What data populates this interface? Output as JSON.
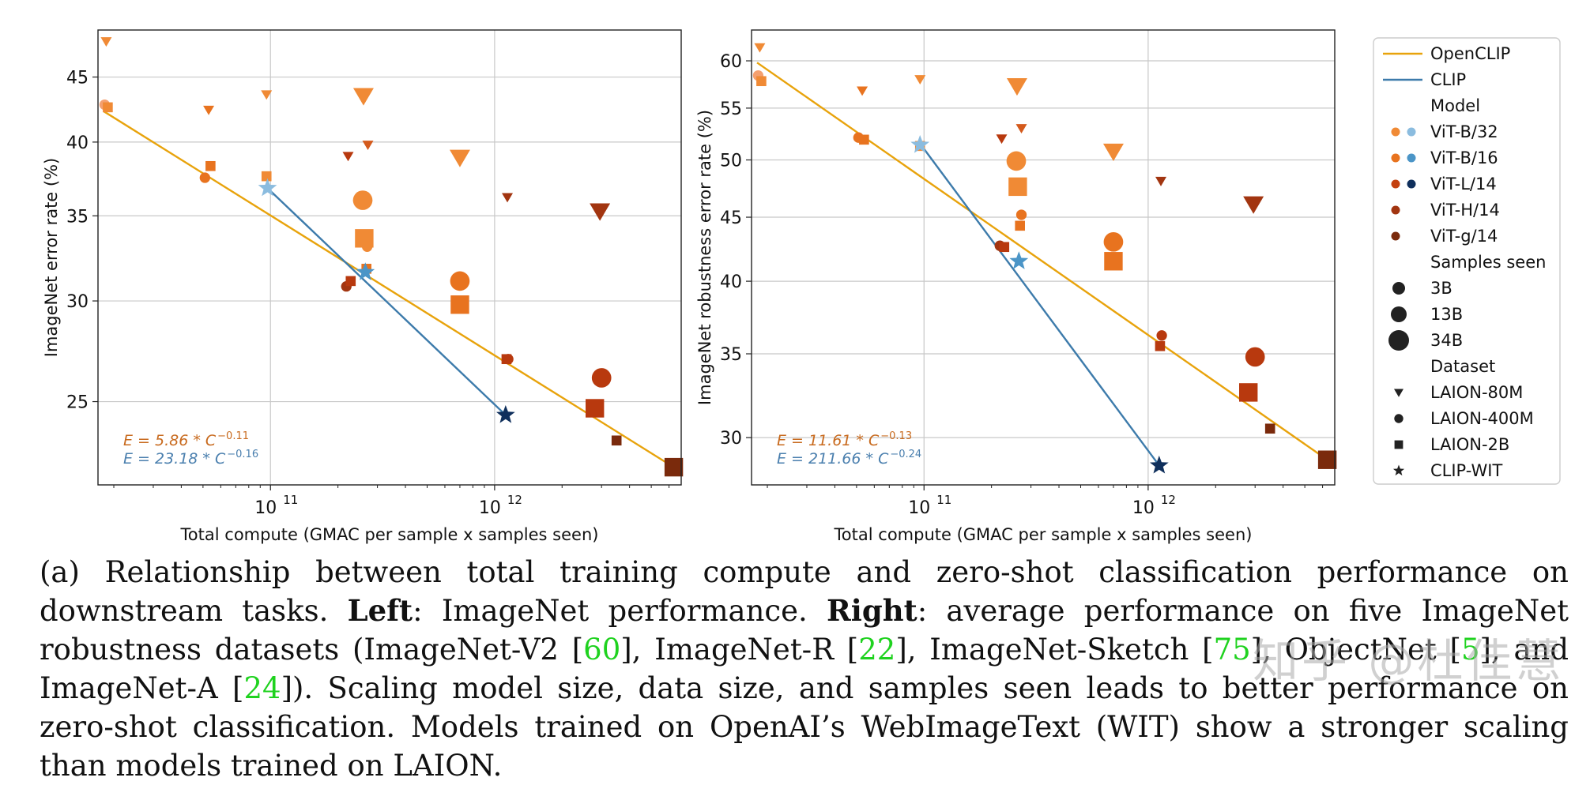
{
  "chart_data": [
    {
      "type": "scatter",
      "panel": "left",
      "xlabel": "Total compute (GMAC per sample x samples seen)",
      "ylabel": "ImageNet error rate (%)",
      "xscale": "log",
      "yscale": "log",
      "xlim": [
        17000000000,
        6800000000000
      ],
      "ylim": [
        21.5,
        49
      ],
      "xticks": [
        {
          "value": 100000000000,
          "label": "10",
          "exp": "11"
        },
        {
          "value": 1000000000000,
          "label": "10",
          "exp": "12"
        }
      ],
      "yticks": [
        25,
        30,
        35,
        40,
        45
      ],
      "fit_lines": [
        {
          "name": "OpenCLIP",
          "color": "#e8a30c",
          "x": [
            18000000000,
            6300000000000
          ],
          "y": [
            42.3,
            22.2
          ]
        },
        {
          "name": "CLIP",
          "color": "#3d7bab",
          "x": [
            97000000000,
            1120000000000
          ],
          "y": [
            36.8,
            24.4
          ]
        }
      ],
      "equations": [
        {
          "base": "E = 5.86 * C",
          "exp": "−0.11",
          "color": "#c86a1e"
        },
        {
          "base": "E = 23.18 * C",
          "exp": "−0.16",
          "color": "#4a7fae"
        }
      ],
      "points": [
        {
          "x": 18500000000,
          "y": 48.0,
          "marker": "triangle",
          "size": 1,
          "color": "#f08a35"
        },
        {
          "x": 18200000000,
          "y": 42.8,
          "marker": "circle",
          "size": 1,
          "color": "#f4a070"
        },
        {
          "x": 18800000000,
          "y": 42.6,
          "marker": "square",
          "size": 1,
          "color": "#f08a35"
        },
        {
          "x": 53000000000,
          "y": 42.4,
          "marker": "triangle",
          "size": 1,
          "color": "#e8731f"
        },
        {
          "x": 51000000000,
          "y": 37.5,
          "marker": "circle",
          "size": 1,
          "color": "#e8731f"
        },
        {
          "x": 54000000000,
          "y": 38.3,
          "marker": "square",
          "size": 1,
          "color": "#e8731f"
        },
        {
          "x": 96000000000,
          "y": 43.6,
          "marker": "triangle",
          "size": 1,
          "color": "#f08a35"
        },
        {
          "x": 96000000000,
          "y": 37.6,
          "marker": "square",
          "size": 1,
          "color": "#f08a35"
        },
        {
          "x": 97000000000,
          "y": 36.8,
          "marker": "star",
          "size": 2,
          "color": "#8bbcdf"
        },
        {
          "x": 260000000000,
          "y": 43.5,
          "marker": "triangle",
          "size": 3,
          "color": "#f08a35"
        },
        {
          "x": 258000000000,
          "y": 36.0,
          "marker": "circle",
          "size": 3,
          "color": "#f08a35"
        },
        {
          "x": 262000000000,
          "y": 33.6,
          "marker": "square",
          "size": 3,
          "color": "#f08a35"
        },
        {
          "x": 270000000000,
          "y": 33.1,
          "marker": "circle",
          "size": 1,
          "color": "#f08a35"
        },
        {
          "x": 268000000000,
          "y": 31.8,
          "marker": "square",
          "size": 1,
          "color": "#e8731f"
        },
        {
          "x": 265000000000,
          "y": 31.6,
          "marker": "star",
          "size": 2,
          "color": "#4b95c7"
        },
        {
          "x": 272000000000,
          "y": 39.8,
          "marker": "triangle",
          "size": 1,
          "color": "#d45a1c"
        },
        {
          "x": 222000000000,
          "y": 39.0,
          "marker": "triangle",
          "size": 1,
          "color": "#b8390e"
        },
        {
          "x": 218000000000,
          "y": 30.8,
          "marker": "circle",
          "size": 1,
          "color": "#a23510"
        },
        {
          "x": 228000000000,
          "y": 31.1,
          "marker": "square",
          "size": 1,
          "color": "#b8390e"
        },
        {
          "x": 700000000000,
          "y": 38.9,
          "marker": "triangle",
          "size": 3,
          "color": "#f08a35"
        },
        {
          "x": 700000000000,
          "y": 31.1,
          "marker": "circle",
          "size": 3,
          "color": "#e8731f"
        },
        {
          "x": 700000000000,
          "y": 29.8,
          "marker": "square",
          "size": 3,
          "color": "#e8731f"
        },
        {
          "x": 1140000000000,
          "y": 36.2,
          "marker": "triangle",
          "size": 1,
          "color": "#a23510"
        },
        {
          "x": 1150000000000,
          "y": 27.0,
          "marker": "circle",
          "size": 1,
          "color": "#b8390e"
        },
        {
          "x": 1130000000000,
          "y": 27.0,
          "marker": "square",
          "size": 1,
          "color": "#b8390e"
        },
        {
          "x": 1120000000000,
          "y": 24.4,
          "marker": "star",
          "size": 2,
          "color": "#0f2f5c"
        },
        {
          "x": 2950000000000,
          "y": 35.3,
          "marker": "triangle",
          "size": 3,
          "color": "#a23510"
        },
        {
          "x": 3000000000000,
          "y": 26.1,
          "marker": "circle",
          "size": 3,
          "color": "#b8390e"
        },
        {
          "x": 2800000000000,
          "y": 24.7,
          "marker": "square",
          "size": 3,
          "color": "#b8390e"
        },
        {
          "x": 3500000000000,
          "y": 23.3,
          "marker": "square",
          "size": 1,
          "color": "#7a2a0c"
        },
        {
          "x": 6300000000000,
          "y": 22.2,
          "marker": "square",
          "size": 3,
          "color": "#7a2a0c"
        }
      ]
    },
    {
      "type": "scatter",
      "panel": "right",
      "xlabel": "Total compute (GMAC per sample x samples seen)",
      "ylabel": "ImageNet robustness error rate (%)",
      "xscale": "log",
      "yscale": "log",
      "xlim": [
        17000000000,
        6800000000000
      ],
      "ylim": [
        27.5,
        63.5
      ],
      "xticks": [
        {
          "value": 100000000000,
          "label": "10",
          "exp": "11"
        },
        {
          "value": 1000000000000,
          "label": "10",
          "exp": "12"
        }
      ],
      "yticks": [
        30,
        35,
        40,
        45,
        50,
        55,
        60
      ],
      "fit_lines": [
        {
          "name": "OpenCLIP",
          "color": "#e8a30c",
          "x": [
            18000000000,
            6300000000000
          ],
          "y": [
            59.8,
            28.8
          ]
        },
        {
          "name": "CLIP",
          "color": "#3d7bab",
          "x": [
            97000000000,
            1120000000000
          ],
          "y": [
            51.4,
            28.5
          ]
        }
      ],
      "equations": [
        {
          "base": "E = 11.61 * C",
          "exp": "−0.13",
          "color": "#c86a1e"
        },
        {
          "base": "E = 211.66 * C",
          "exp": "−0.24",
          "color": "#4a7fae"
        }
      ],
      "points": [
        {
          "x": 18500000000,
          "y": 61.5,
          "marker": "triangle",
          "size": 1,
          "color": "#f08a35"
        },
        {
          "x": 18200000000,
          "y": 58.4,
          "marker": "circle",
          "size": 1,
          "color": "#f4a070"
        },
        {
          "x": 18800000000,
          "y": 57.8,
          "marker": "square",
          "size": 1,
          "color": "#f08a35"
        },
        {
          "x": 53000000000,
          "y": 56.8,
          "marker": "triangle",
          "size": 1,
          "color": "#e8731f"
        },
        {
          "x": 51000000000,
          "y": 52.1,
          "marker": "circle",
          "size": 1,
          "color": "#e8731f"
        },
        {
          "x": 54000000000,
          "y": 51.9,
          "marker": "square",
          "size": 1,
          "color": "#e8731f"
        },
        {
          "x": 96000000000,
          "y": 58.0,
          "marker": "triangle",
          "size": 1,
          "color": "#f08a35"
        },
        {
          "x": 96000000000,
          "y": 51.3,
          "marker": "square",
          "size": 1,
          "color": "#f08a35"
        },
        {
          "x": 96000000000,
          "y": 51.4,
          "marker": "star",
          "size": 2,
          "color": "#8bbcdf"
        },
        {
          "x": 260000000000,
          "y": 57.3,
          "marker": "triangle",
          "size": 3,
          "color": "#f08a35"
        },
        {
          "x": 258000000000,
          "y": 49.9,
          "marker": "circle",
          "size": 3,
          "color": "#f08a35"
        },
        {
          "x": 262000000000,
          "y": 47.6,
          "marker": "square",
          "size": 3,
          "color": "#f08a35"
        },
        {
          "x": 272000000000,
          "y": 45.2,
          "marker": "circle",
          "size": 1,
          "color": "#e8731f"
        },
        {
          "x": 268000000000,
          "y": 44.3,
          "marker": "square",
          "size": 1,
          "color": "#e8731f"
        },
        {
          "x": 265000000000,
          "y": 41.5,
          "marker": "star",
          "size": 2,
          "color": "#4b95c7"
        },
        {
          "x": 272000000000,
          "y": 53.0,
          "marker": "triangle",
          "size": 1,
          "color": "#d45a1c"
        },
        {
          "x": 222000000000,
          "y": 52.0,
          "marker": "triangle",
          "size": 1,
          "color": "#b8390e"
        },
        {
          "x": 218000000000,
          "y": 42.7,
          "marker": "circle",
          "size": 1,
          "color": "#a23510"
        },
        {
          "x": 228000000000,
          "y": 42.6,
          "marker": "square",
          "size": 1,
          "color": "#b8390e"
        },
        {
          "x": 700000000000,
          "y": 50.8,
          "marker": "triangle",
          "size": 3,
          "color": "#f08a35"
        },
        {
          "x": 700000000000,
          "y": 43.0,
          "marker": "circle",
          "size": 3,
          "color": "#e8731f"
        },
        {
          "x": 700000000000,
          "y": 41.5,
          "marker": "square",
          "size": 3,
          "color": "#e8731f"
        },
        {
          "x": 1140000000000,
          "y": 48.1,
          "marker": "triangle",
          "size": 1,
          "color": "#a23510"
        },
        {
          "x": 1150000000000,
          "y": 36.2,
          "marker": "circle",
          "size": 1,
          "color": "#b8390e"
        },
        {
          "x": 1130000000000,
          "y": 35.5,
          "marker": "square",
          "size": 1,
          "color": "#b8390e"
        },
        {
          "x": 1120000000000,
          "y": 28.5,
          "marker": "star",
          "size": 2,
          "color": "#0f2f5c"
        },
        {
          "x": 2950000000000,
          "y": 46.1,
          "marker": "triangle",
          "size": 3,
          "color": "#a23510"
        },
        {
          "x": 3000000000000,
          "y": 34.8,
          "marker": "circle",
          "size": 3,
          "color": "#b8390e"
        },
        {
          "x": 2800000000000,
          "y": 32.6,
          "marker": "square",
          "size": 3,
          "color": "#b8390e"
        },
        {
          "x": 3500000000000,
          "y": 30.5,
          "marker": "square",
          "size": 1,
          "color": "#7a2a0c"
        },
        {
          "x": 6300000000000,
          "y": 28.8,
          "marker": "square",
          "size": 3,
          "color": "#7a2a0c"
        }
      ]
    }
  ],
  "legend": {
    "placement": "right",
    "lines": [
      {
        "label": "OpenCLIP",
        "color": "#e8a30c"
      },
      {
        "label": "CLIP",
        "color": "#3d7bab"
      }
    ],
    "model_header": "Model",
    "models": [
      {
        "label": "ViT-B/32",
        "color": "#f08a35",
        "clip_color": "#8bbcdf"
      },
      {
        "label": "ViT-B/16",
        "color": "#e8731f",
        "clip_color": "#4b95c7"
      },
      {
        "label": "ViT-L/14",
        "color": "#c4400f",
        "clip_color": "#0f2f5c"
      },
      {
        "label": "ViT-H/14",
        "color": "#a23510"
      },
      {
        "label": "ViT-g/14",
        "color": "#7a2a0c"
      }
    ],
    "samples_header": "Samples seen",
    "samples": [
      {
        "label": "3B",
        "size": 1
      },
      {
        "label": "13B",
        "size": 2
      },
      {
        "label": "34B",
        "size": 3
      }
    ],
    "dataset_header": "Dataset",
    "datasets": [
      {
        "label": "LAION-80M",
        "marker": "triangle"
      },
      {
        "label": "LAION-400M",
        "marker": "circle"
      },
      {
        "label": "LAION-2B",
        "marker": "square"
      },
      {
        "label": "CLIP-WIT",
        "marker": "star"
      }
    ]
  },
  "caption": {
    "prefix": "(a) Relationship between total training compute and zero-shot classification performance on downstream tasks. ",
    "left_bold": "Left",
    "left_text": ": ImageNet performance. ",
    "right_bold": "Right",
    "right_text": ": average performance on five ImageNet robustness datasets (ImageNet-V2 [",
    "c1": "60",
    "t2": "], ImageNet-R [",
    "c2": "22",
    "t3": "], ImageNet-Sketch [",
    "c3": "75",
    "t4": "], ObjectNet [",
    "c4": "5",
    "t5": "], and ImageNet-A [",
    "c5": "24",
    "t6": "]). Scaling model size, data size, and samples seen leads to better performance on zero-shot classification. Models trained on OpenAI’s WebImageText (WIT) show a stronger scaling than models trained on LAION."
  },
  "watermark": "知乎 @杜佳慧"
}
